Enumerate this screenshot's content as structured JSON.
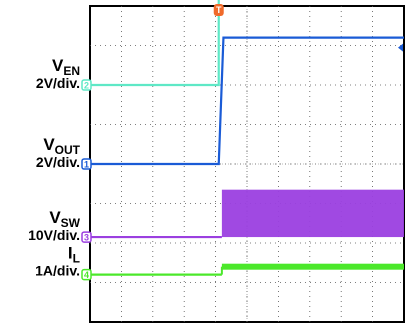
{
  "chart_data": {
    "type": "line",
    "title": "",
    "xlabel": "",
    "ylabel": "",
    "grid": true,
    "x_divisions": 10,
    "y_divisions": 8,
    "trigger_marker": "T",
    "trigger_position_div": 4.1,
    "series": [
      {
        "name": "V",
        "subscript": "EN",
        "scale": "2V/div.",
        "channel": "2",
        "color": "#5ee8c6",
        "ground_div": 6.0,
        "edge_div": 4.1,
        "low_div": 0.0,
        "high_div": 3.0,
        "step_y": [
          [
            0,
            0.0
          ],
          [
            4.1,
            0.0
          ],
          [
            4.1,
            3.0
          ],
          [
            10,
            3.0
          ]
        ]
      },
      {
        "name": "V",
        "subscript": "OUT",
        "scale": "2V/div.",
        "channel": "1",
        "color": "#1a5bd6",
        "ground_div": 4.0,
        "edge_div": 4.2,
        "low_div": 0.0,
        "high_div": 3.2,
        "step_y": [
          [
            0,
            0.0
          ],
          [
            4.1,
            0.0
          ],
          [
            4.25,
            3.2
          ],
          [
            10,
            3.2
          ]
        ]
      },
      {
        "name": "V",
        "subscript": "SW",
        "scale": "10V/div.",
        "channel": "3",
        "color": "#9b3fe0",
        "ground_div": 2.15,
        "edge_div": 4.2,
        "low_div": 0.0,
        "high_div": 1.2,
        "step_y": [
          [
            0,
            0.0
          ],
          [
            4.2,
            0.0
          ],
          [
            4.2,
            1.2
          ],
          [
            10,
            1.2
          ]
        ],
        "switching": true
      },
      {
        "name": "I",
        "subscript": "L",
        "scale": "1A/div.",
        "channel": "4",
        "color": "#4be82a",
        "ground_div": 1.2,
        "edge_div": 4.2,
        "low_div": 0.0,
        "high_div": 0.2,
        "step_y": [
          [
            0,
            0.0
          ],
          [
            4.2,
            0.0
          ],
          [
            4.2,
            0.2
          ],
          [
            10,
            0.2
          ]
        ],
        "ripple": true
      }
    ]
  }
}
